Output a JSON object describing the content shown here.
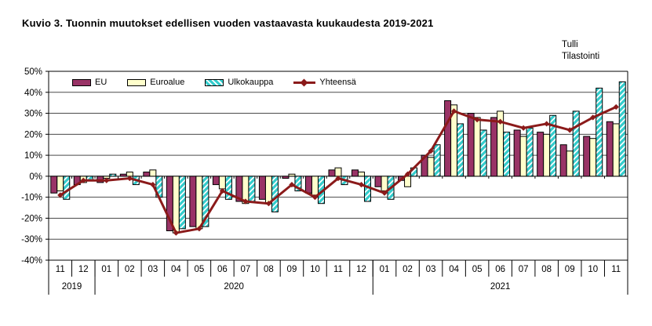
{
  "header": {
    "title": "Kuvio 3. Tuonnin muutokset edellisen vuoden vastaavasta kuukaudesta 2019-2021"
  },
  "source": {
    "line1": "Tulli",
    "line2": "Tilastointi"
  },
  "legend": {
    "items": [
      {
        "label": "EU",
        "type": "bar"
      },
      {
        "label": "Euroalue",
        "type": "bar"
      },
      {
        "label": "Ulkokauppa",
        "type": "bar-hatched"
      },
      {
        "label": "Yhteensä",
        "type": "line"
      }
    ]
  },
  "colors": {
    "eu": "#993366",
    "euroalue": "#FFFFCC",
    "ulkokauppa_stripe": "#33CCCC",
    "ulkokauppa_bg": "#FFFFFF",
    "yhteensa": "#8B1A1A",
    "bar_border": "#000000",
    "gridline": "#4a4a4a",
    "axis": "#000000",
    "text": "#000000",
    "background": "#FFFFFF"
  },
  "chart_data": {
    "type": "bar",
    "combo": "bars+line",
    "title": "Kuvio 3. Tuonnin muutokset edellisen vuoden vastaavasta kuukaudesta 2019-2021",
    "xlabel": "",
    "ylabel": "",
    "ylim": [
      -40,
      50
    ],
    "ytick_step": 10,
    "yticks": [
      "50%",
      "40%",
      "30%",
      "20%",
      "10%",
      "0%",
      "-10%",
      "-20%",
      "-30%",
      "-40%"
    ],
    "grid": true,
    "legend_position": "top-left-inside",
    "categories": [
      "11",
      "12",
      "01",
      "02",
      "03",
      "04",
      "05",
      "06",
      "07",
      "08",
      "09",
      "10",
      "11",
      "12",
      "01",
      "02",
      "03",
      "04",
      "05",
      "06",
      "07",
      "08",
      "09",
      "10",
      "11"
    ],
    "year_groups": [
      {
        "label": "2019",
        "span": 2
      },
      {
        "label": "2020",
        "span": 12
      },
      {
        "label": "2021",
        "span": 11
      }
    ],
    "series": [
      {
        "name": "EU",
        "type": "bar",
        "values": [
          -8,
          -4,
          -3,
          1,
          2,
          -26,
          -24,
          -4,
          -12,
          -11,
          -1,
          -8,
          3,
          3,
          -5,
          -2,
          10,
          36,
          30,
          28,
          22,
          21,
          15,
          19,
          26
        ]
      },
      {
        "name": "Euroalue",
        "type": "bar",
        "values": [
          -7,
          -3,
          -1,
          2,
          3,
          -27,
          -25,
          -6,
          -13,
          -13,
          1,
          -9,
          4,
          2,
          -7,
          -5,
          9,
          34,
          28,
          31,
          19,
          20,
          12,
          18,
          25
        ]
      },
      {
        "name": "Ulkokauppa",
        "type": "bar",
        "values": [
          -11,
          -2,
          1,
          -4,
          -10,
          -25,
          -24,
          -11,
          -12,
          -17,
          -7,
          -13,
          -4,
          -12,
          -11,
          4,
          15,
          25,
          22,
          21,
          23,
          29,
          31,
          42,
          45
        ]
      },
      {
        "name": "Yhteensä",
        "type": "line",
        "values": [
          -9,
          -2,
          -2,
          -1,
          -4,
          -27,
          -25,
          -7,
          -12,
          -13,
          -4,
          -10,
          -1,
          -4,
          -8,
          1,
          12,
          31,
          27,
          26,
          23,
          25,
          22,
          28,
          33
        ]
      }
    ]
  }
}
